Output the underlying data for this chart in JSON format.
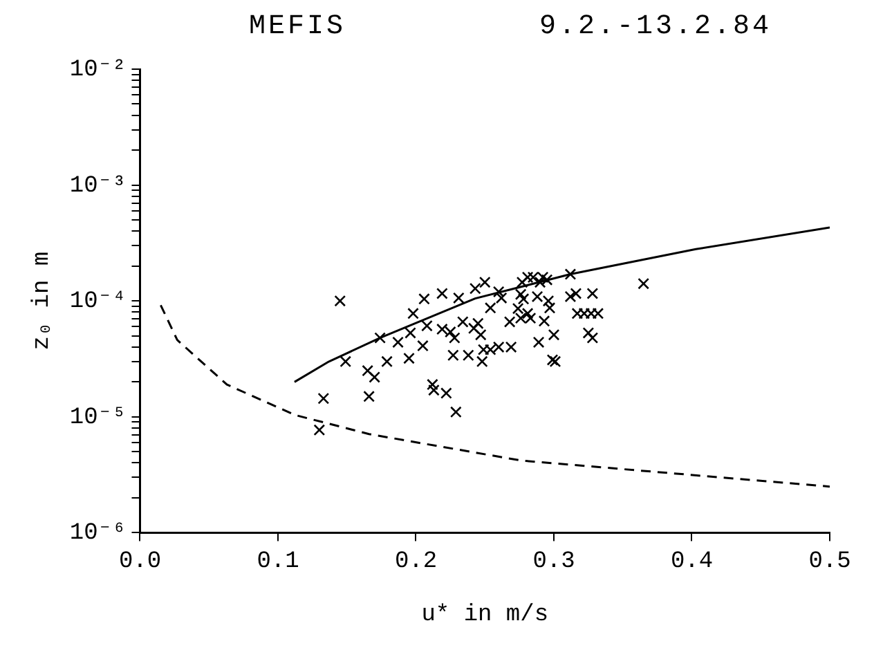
{
  "chart_data": {
    "type": "scatter",
    "title": "MEFIS",
    "subtitle": "9.2.-13.2.84",
    "xlabel": "u* in m/s",
    "ylabel": "z₀ in m",
    "log": "y",
    "grid": false,
    "legend": false,
    "xlim": [
      0,
      0.5
    ],
    "xticks": [
      {
        "value": 0,
        "label": "0.0"
      },
      {
        "value": 0.1,
        "label": "0.1"
      },
      {
        "value": 0.2,
        "label": "0.2"
      },
      {
        "value": 0.3,
        "label": "0.3"
      },
      {
        "value": 0.4,
        "label": "0.4"
      },
      {
        "value": 0.5,
        "label": "0.5"
      }
    ],
    "ylim": [
      1e-06,
      0.01
    ],
    "yticks": [
      {
        "value": 1e-06,
        "label": "10⁻⁶"
      },
      {
        "value": 2e-06,
        "label": null
      },
      {
        "value": 3e-06,
        "label": null
      },
      {
        "value": 4e-06,
        "label": null
      },
      {
        "value": 5e-06,
        "label": null
      },
      {
        "value": 6e-06,
        "label": null
      },
      {
        "value": 7e-06,
        "label": null
      },
      {
        "value": 8e-06,
        "label": null
      },
      {
        "value": 9e-06,
        "label": null
      },
      {
        "value": 1e-05,
        "label": "10⁻⁵"
      },
      {
        "value": 2e-05,
        "label": null
      },
      {
        "value": 3e-05,
        "label": null
      },
      {
        "value": 4e-05,
        "label": null
      },
      {
        "value": 5e-05,
        "label": null
      },
      {
        "value": 6e-05,
        "label": null
      },
      {
        "value": 7e-05,
        "label": null
      },
      {
        "value": 8e-05,
        "label": null
      },
      {
        "value": 9e-05,
        "label": null
      },
      {
        "value": 0.0001,
        "label": "10⁻⁴"
      },
      {
        "value": 0.0002,
        "label": null
      },
      {
        "value": 0.0003,
        "label": null
      },
      {
        "value": 0.0004,
        "label": null
      },
      {
        "value": 0.0005,
        "label": null
      },
      {
        "value": 0.0006,
        "label": null
      },
      {
        "value": 0.0007,
        "label": null
      },
      {
        "value": 0.0008,
        "label": null
      },
      {
        "value": 0.0009,
        "label": null
      },
      {
        "value": 0.001,
        "label": "10⁻³"
      },
      {
        "value": 0.002,
        "label": null
      },
      {
        "value": 0.003,
        "label": null
      },
      {
        "value": 0.004,
        "label": null
      },
      {
        "value": 0.005,
        "label": null
      },
      {
        "value": 0.006,
        "label": null
      },
      {
        "value": 0.007,
        "label": null
      },
      {
        "value": 0.008,
        "label": null
      },
      {
        "value": 0.009,
        "label": null
      },
      {
        "value": 0.01,
        "label": "10⁻²"
      }
    ],
    "series": [
      {
        "marker": "cross",
        "color": "#000000",
        "x": [
          0.145,
          0.149,
          0.165,
          0.17,
          0.166,
          0.174,
          0.179,
          0.187,
          0.195,
          0.198,
          0.196,
          0.205,
          0.206,
          0.208,
          0.212,
          0.213,
          0.222,
          0.219,
          0.219,
          0.225,
          0.228,
          0.229,
          0.227,
          0.231,
          0.234,
          0.238,
          0.243,
          0.242,
          0.245,
          0.247,
          0.25,
          0.249,
          0.248,
          0.254,
          0.254,
          0.26,
          0.26,
          0.262,
          0.269,
          0.268,
          0.274,
          0.276,
          0.277,
          0.276,
          0.278,
          0.281,
          0.281,
          0.283,
          0.285,
          0.288,
          0.29,
          0.292,
          0.293,
          0.295,
          0.296,
          0.297,
          0.289,
          0.3,
          0.299,
          0.301,
          0.312,
          0.312,
          0.316,
          0.317,
          0.322,
          0.328,
          0.327,
          0.332,
          0.325,
          0.328,
          0.365,
          0.133,
          0.13
        ],
        "values": [
          0.0001,
          3e-05,
          2.5e-05,
          2.2e-05,
          1.5e-05,
          4.8e-05,
          3e-05,
          4.4e-05,
          3.2e-05,
          7.8e-05,
          5.3e-05,
          4.1e-05,
          0.000104,
          6.1e-05,
          1.9e-05,
          1.7e-05,
          1.6e-05,
          0.000116,
          5.7e-05,
          5.4e-05,
          4.8e-05,
          1.1e-05,
          3.4e-05,
          0.000106,
          6.6e-05,
          3.4e-05,
          0.000128,
          5.8e-05,
          6.4e-05,
          5.1e-05,
          0.000145,
          3.8e-05,
          3e-05,
          8.7e-05,
          3.8e-05,
          0.00012,
          4e-05,
          0.000106,
          4e-05,
          6.6e-05,
          8.6e-05,
          0.000114,
          0.000145,
          7.1e-05,
          0.000104,
          7.8e-05,
          0.00016,
          7.1e-05,
          0.00016,
          0.000109,
          0.000145,
          0.00016,
          6.7e-05,
          0.000152,
          0.0001,
          8.7e-05,
          4.4e-05,
          5.1e-05,
          3.1e-05,
          3e-05,
          0.00017,
          0.000109,
          0.000116,
          7.8e-05,
          7.8e-05,
          0.000116,
          7.8e-05,
          7.8e-05,
          5.3e-05,
          4.8e-05,
          0.000141,
          1.44e-05,
          7.7e-06
        ]
      },
      {
        "type": "line",
        "marker": "none",
        "line_style": "solid",
        "color": "#000000",
        "x": [
          0.112,
          0.137,
          0.174,
          0.243,
          0.312,
          0.403,
          0.5
        ],
        "values": [
          2e-05,
          3e-05,
          4.8e-05,
          0.000105,
          0.00017,
          0.00028,
          0.00043
        ]
      },
      {
        "type": "line",
        "marker": "none",
        "line_style": "dashed",
        "color": "#000000",
        "x": [
          0.015,
          0.027,
          0.063,
          0.112,
          0.166,
          0.276,
          0.5
        ],
        "values": [
          9.2e-05,
          4.6e-05,
          1.9e-05,
          1.04e-05,
          7.1e-06,
          4.2e-06,
          2.5e-06
        ]
      }
    ]
  }
}
